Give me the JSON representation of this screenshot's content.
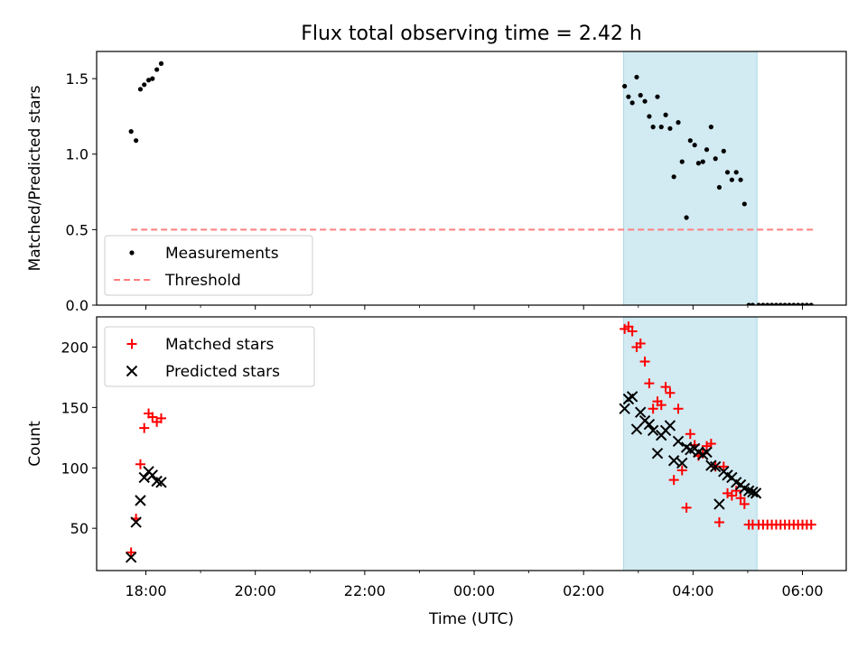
{
  "figure": {
    "title": "Flux total observing time = 2.42 h",
    "xlabel": "Time (UTC)",
    "xticks": [
      {
        "value": 18,
        "label": "18:00"
      },
      {
        "value": 20,
        "label": "20:00"
      },
      {
        "value": 22,
        "label": "22:00"
      },
      {
        "value": 24,
        "label": "00:00"
      },
      {
        "value": 26,
        "label": "02:00"
      },
      {
        "value": 28,
        "label": "04:00"
      },
      {
        "value": 30,
        "label": "06:00"
      }
    ],
    "minor_xticks": [
      19,
      21,
      23,
      25,
      27,
      29
    ],
    "xlim": [
      17.1,
      30.8
    ],
    "highlight_span": [
      26.73,
      29.17
    ],
    "colors": {
      "highlight": "#add8e6",
      "threshold": "#ff7f7f",
      "measurements": "#000000",
      "matched": "#ff0000",
      "predicted": "#000000"
    }
  },
  "chart_data": [
    {
      "type": "scatter",
      "title": "Flux total observing time = 2.42 h",
      "ylabel": "Matched/Predicted stars",
      "ylim": [
        0,
        1.68
      ],
      "yticks": [
        {
          "value": 0,
          "label": "0.0"
        },
        {
          "value": 0.5,
          "label": "0.5"
        },
        {
          "value": 1.0,
          "label": "1.0"
        },
        {
          "value": 1.5,
          "label": "1.5"
        }
      ],
      "legend": {
        "position": "lower-left",
        "entries": [
          "Measurements",
          "Threshold"
        ]
      },
      "threshold": {
        "name": "Threshold",
        "y": 0.5,
        "x": [
          17.73,
          30.2
        ]
      },
      "series": [
        {
          "name": "Measurements",
          "x": [
            17.73,
            17.82,
            17.9,
            17.97,
            18.05,
            18.12,
            18.2,
            18.28,
            26.75,
            26.82,
            26.89,
            26.97,
            27.04,
            27.12,
            27.2,
            27.27,
            27.35,
            27.42,
            27.5,
            27.58,
            27.65,
            27.73,
            27.8,
            27.88,
            27.95,
            28.03,
            28.1,
            28.18,
            28.25,
            28.33,
            28.41,
            28.48,
            28.56,
            28.63,
            28.71,
            28.79,
            28.87,
            28.94,
            29.02,
            29.09,
            29.2,
            29.28,
            29.36,
            29.44,
            29.52,
            29.6,
            29.68,
            29.76,
            29.84,
            29.92,
            30.0,
            30.08,
            30.16
          ],
          "y": [
            1.15,
            1.09,
            1.43,
            1.46,
            1.49,
            1.5,
            1.56,
            1.6,
            1.45,
            1.38,
            1.34,
            1.51,
            1.39,
            1.35,
            1.25,
            1.18,
            1.38,
            1.18,
            1.26,
            1.17,
            0.85,
            1.21,
            0.95,
            0.58,
            1.09,
            1.06,
            0.94,
            0.95,
            1.03,
            1.18,
            0.97,
            0.78,
            1.02,
            0.88,
            0.83,
            0.88,
            0.83,
            0.67,
            0.0,
            0.0,
            0.0,
            0.0,
            0.0,
            0.0,
            0.0,
            0.0,
            0.0,
            0.0,
            0.0,
            0.0,
            0.0,
            0.0,
            0.0
          ]
        }
      ]
    },
    {
      "type": "scatter",
      "ylabel": "Count",
      "ylim": [
        15,
        225
      ],
      "yticks": [
        {
          "value": 50,
          "label": "50"
        },
        {
          "value": 100,
          "label": "100"
        },
        {
          "value": 150,
          "label": "150"
        },
        {
          "value": 200,
          "label": "200"
        }
      ],
      "legend": {
        "position": "upper-left",
        "entries": [
          "Matched stars",
          "Predicted stars"
        ]
      },
      "series": [
        {
          "name": "Matched stars",
          "marker": "plus",
          "x": [
            17.73,
            17.82,
            17.9,
            17.97,
            18.05,
            18.12,
            18.2,
            18.28,
            26.75,
            26.82,
            26.89,
            26.97,
            27.04,
            27.12,
            27.2,
            27.27,
            27.35,
            27.42,
            27.5,
            27.58,
            27.65,
            27.73,
            27.8,
            27.88,
            27.95,
            28.03,
            28.1,
            28.18,
            28.25,
            28.33,
            28.41,
            28.48,
            28.56,
            28.63,
            28.71,
            28.79,
            28.87,
            28.94,
            29.02,
            29.09,
            29.2,
            29.28,
            29.36,
            29.44,
            29.52,
            29.6,
            29.68,
            29.76,
            29.84,
            29.92,
            30.0,
            30.08,
            30.16
          ],
          "y": [
            30,
            58,
            103,
            133,
            145,
            142,
            138,
            141,
            215,
            217,
            213,
            200,
            203,
            188,
            170,
            149,
            155,
            152,
            167,
            162,
            90,
            149,
            98,
            67,
            128,
            119,
            110,
            112,
            118,
            120,
            101,
            55,
            101,
            79,
            77,
            81,
            75,
            70,
            53,
            53,
            53,
            53,
            53,
            53,
            53,
            53,
            53,
            53,
            53,
            53,
            53,
            53,
            53
          ]
        },
        {
          "name": "Predicted stars",
          "marker": "cross",
          "x": [
            17.73,
            17.82,
            17.9,
            17.97,
            18.05,
            18.12,
            18.2,
            18.28,
            26.75,
            26.82,
            26.89,
            26.97,
            27.04,
            27.12,
            27.2,
            27.27,
            27.35,
            27.42,
            27.5,
            27.58,
            27.65,
            27.73,
            27.8,
            27.88,
            27.95,
            28.03,
            28.1,
            28.18,
            28.25,
            28.33,
            28.41,
            28.48,
            28.56,
            28.63,
            28.71,
            28.79,
            28.87,
            28.94,
            29.02,
            29.09,
            29.15
          ],
          "y": [
            26,
            55,
            73,
            92,
            97,
            94,
            89,
            88,
            149,
            157,
            159,
            132,
            146,
            139,
            136,
            131,
            112,
            127,
            131,
            135,
            106,
            122,
            104,
            117,
            115,
            116,
            113,
            111,
            113,
            102,
            101,
            70,
            97,
            94,
            92,
            88,
            86,
            83,
            81,
            80,
            79
          ]
        }
      ]
    }
  ]
}
